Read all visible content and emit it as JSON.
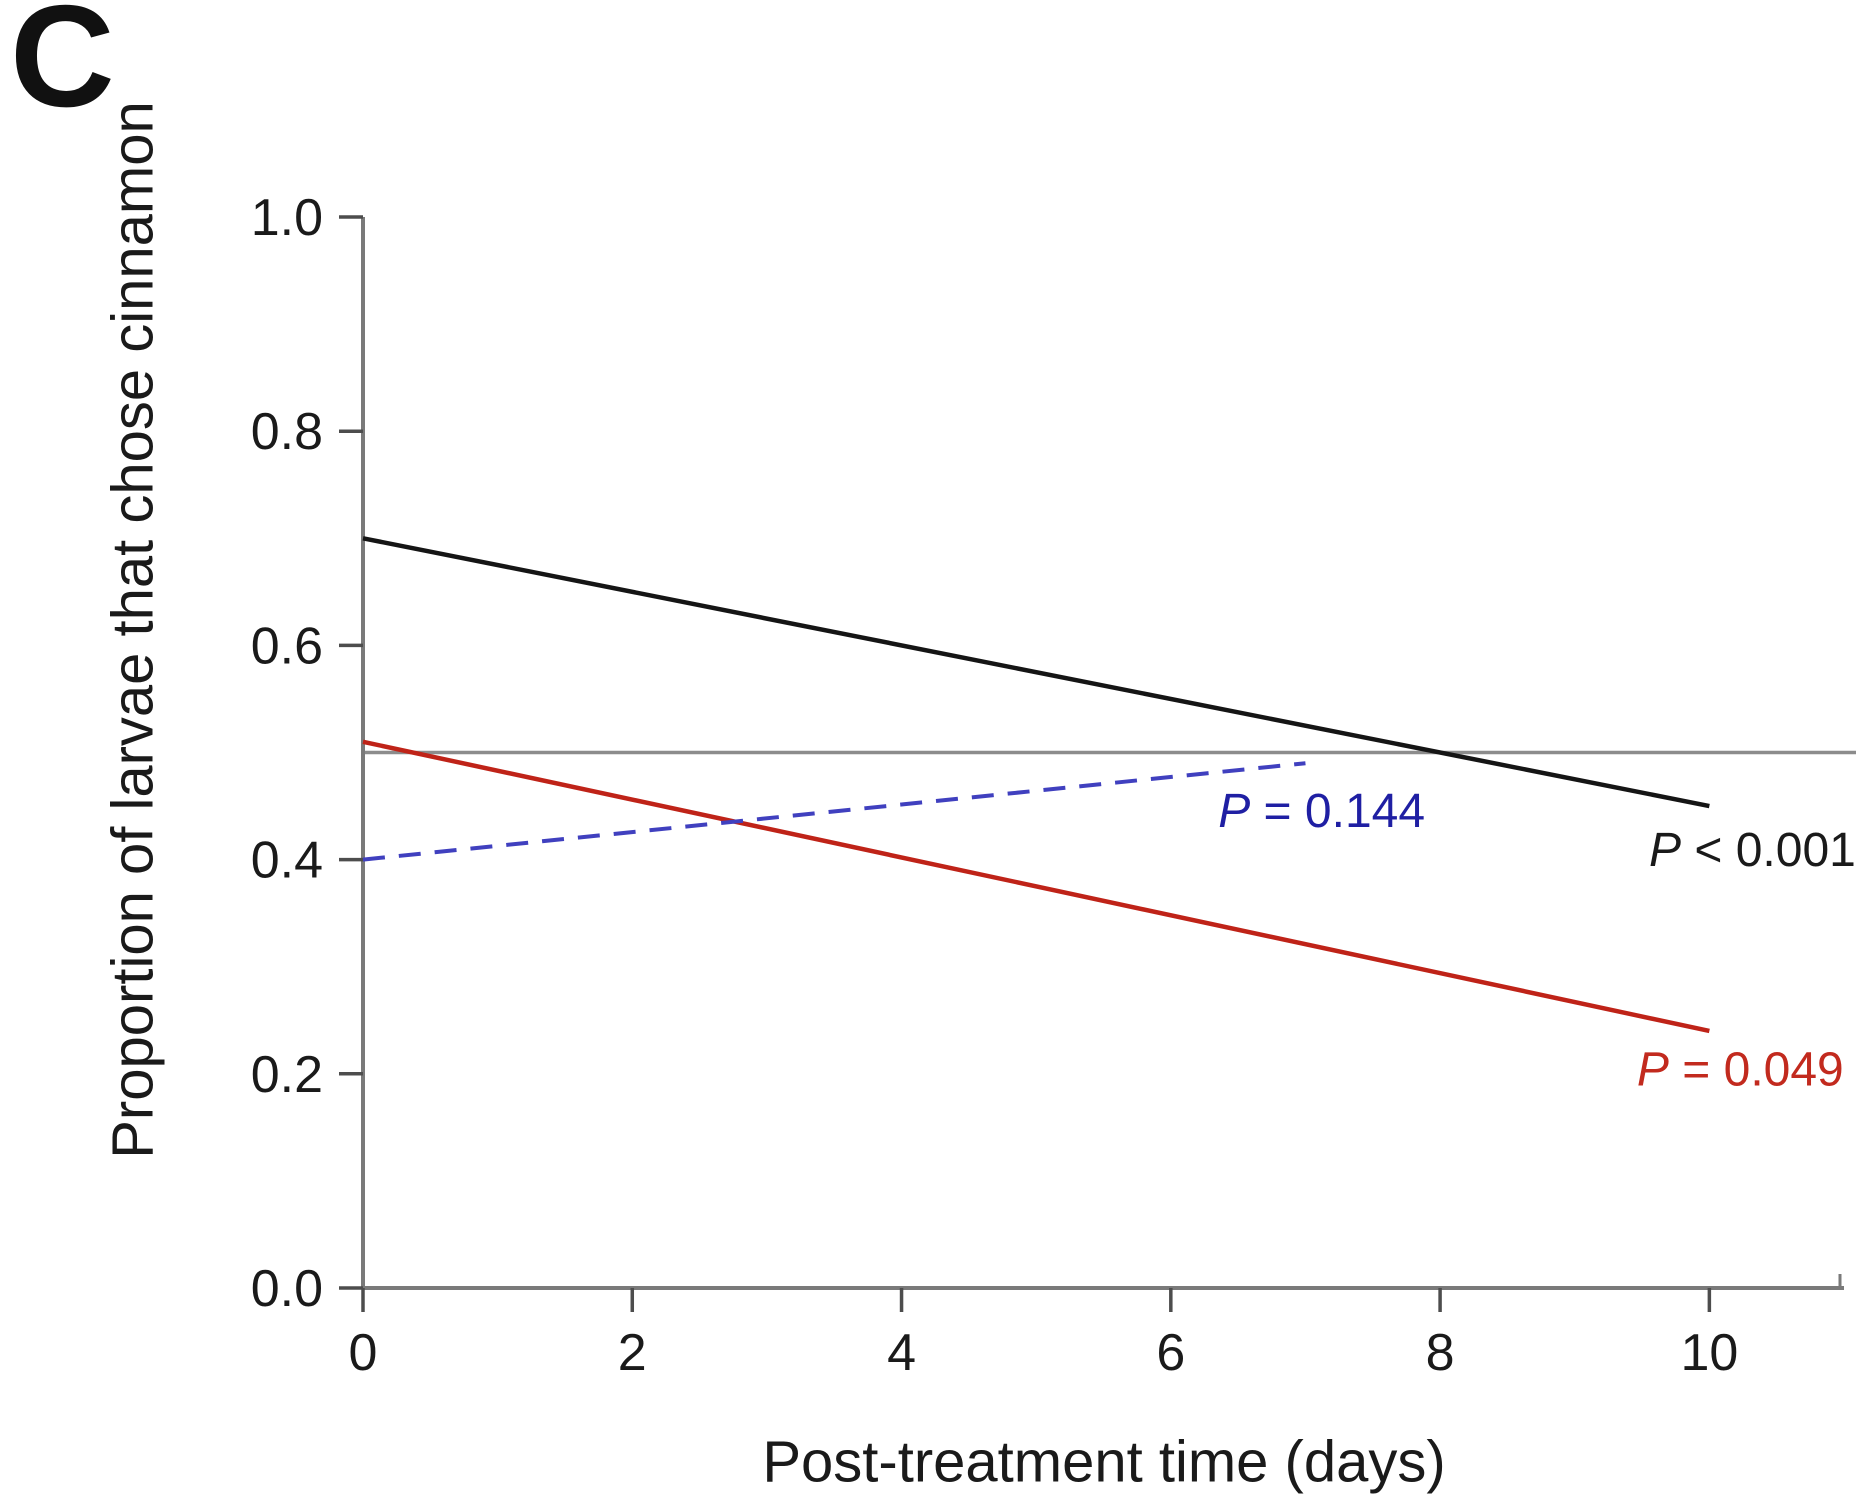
{
  "figure": {
    "panel_label": "C"
  },
  "colors": {
    "axis": "#7a7a7a",
    "tick": "#4d4d4d",
    "reference_line": "#8c8c8c",
    "black_series": "#151515",
    "red_series": "#bf2318",
    "blue_series": "#4040bf",
    "black_text": "#1a1a1a",
    "red_text": "#c22a1e",
    "blue_text": "#1f1fa3"
  },
  "chart_data": {
    "type": "line",
    "title": "",
    "xlabel": "Post-treatment time (days)",
    "ylabel": "Proportion of larvae that chose cinnamon",
    "xlim": [
      0,
      11
    ],
    "ylim": [
      0,
      1.0
    ],
    "grid": false,
    "legend_position": "none",
    "x_ticks": {
      "values": [
        0,
        2,
        4,
        6,
        8,
        10
      ],
      "labels": [
        "0",
        "2",
        "4",
        "6",
        "8",
        "10"
      ]
    },
    "y_ticks": {
      "values": [
        0.0,
        0.2,
        0.4,
        0.6,
        0.8,
        1.0
      ],
      "labels": [
        "0.0",
        "0.2",
        "0.4",
        "0.6",
        "0.8",
        "1.0"
      ]
    },
    "reference_line_y": 0.5,
    "series": [
      {
        "name": "black-regression",
        "color_key": "black_series",
        "style": "solid",
        "x": [
          0,
          10
        ],
        "y": [
          0.7,
          0.45
        ],
        "p_value_label": "P < 0.001"
      },
      {
        "name": "red-regression",
        "color_key": "red_series",
        "style": "solid",
        "x": [
          0,
          10
        ],
        "y": [
          0.51,
          0.24
        ],
        "p_value_label": "P = 0.049"
      },
      {
        "name": "blue-regression",
        "color_key": "blue_series",
        "style": "dashed",
        "x": [
          0,
          7
        ],
        "y": [
          0.4,
          0.49
        ],
        "p_value_label": "P = 0.144"
      }
    ],
    "annotations": [
      {
        "text": "P = 0.144",
        "color_key": "blue_text",
        "x": 7.12,
        "y": 0.4465
      },
      {
        "text": "P < 0.001",
        "color_key": "black_text",
        "x": 10.32,
        "y": 0.41
      },
      {
        "text": "P = 0.049",
        "color_key": "red_text",
        "x": 10.23,
        "y": 0.205
      }
    ]
  }
}
